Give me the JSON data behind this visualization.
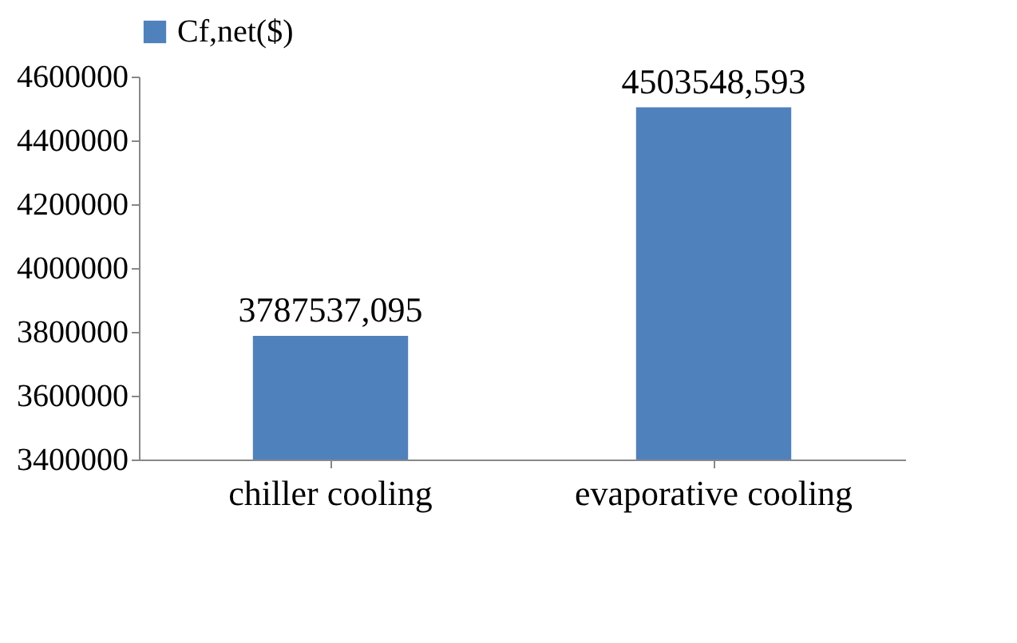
{
  "chart_data": {
    "type": "bar",
    "categories": [
      "chiller cooling",
      "evaporative cooling"
    ],
    "series": [
      {
        "name": "Cf,net($)",
        "color": "#4f81bd",
        "values": [
          3787537.095,
          4503548.593
        ],
        "value_labels": [
          "3787537,095",
          "4503548,593"
        ]
      }
    ],
    "ylim": [
      3400000,
      4600000
    ],
    "yticks": [
      3400000,
      3600000,
      3800000,
      4000000,
      4200000,
      4400000,
      4600000
    ],
    "grid": false,
    "legend": "top"
  }
}
